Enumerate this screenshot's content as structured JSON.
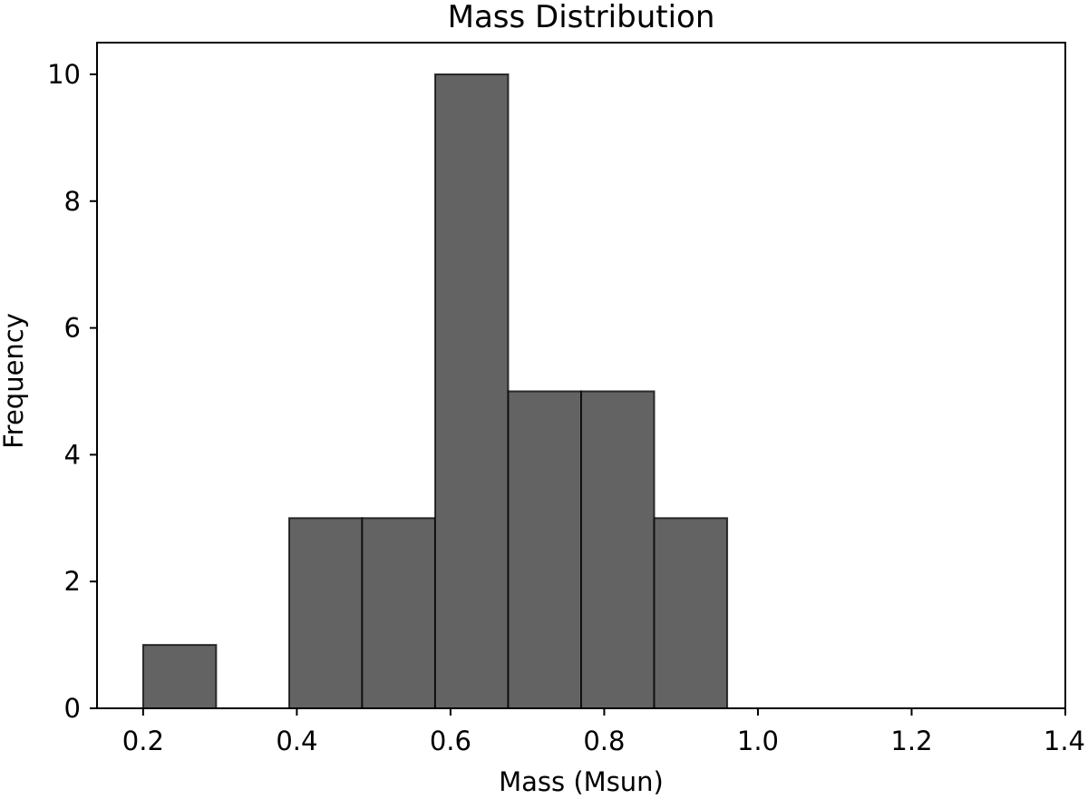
{
  "chart_data": {
    "type": "bar",
    "title": "Mass Distribution",
    "xlabel": "Mass (Msun)",
    "ylabel": "Frequency",
    "bins": [
      {
        "x0": 0.2,
        "x1": 0.295,
        "count": 1
      },
      {
        "x0": 0.295,
        "x1": 0.39,
        "count": 0
      },
      {
        "x0": 0.39,
        "x1": 0.485,
        "count": 3
      },
      {
        "x0": 0.485,
        "x1": 0.58,
        "count": 3
      },
      {
        "x0": 0.58,
        "x1": 0.675,
        "count": 10
      },
      {
        "x0": 0.675,
        "x1": 0.77,
        "count": 5
      },
      {
        "x0": 0.77,
        "x1": 0.865,
        "count": 5
      },
      {
        "x0": 0.865,
        "x1": 0.96,
        "count": 3
      }
    ],
    "xlim": [
      0.14,
      1.4
    ],
    "ylim": [
      0,
      10.5
    ],
    "xticks": [
      {
        "value": 0.2,
        "label": "0.2"
      },
      {
        "value": 0.4,
        "label": "0.4"
      },
      {
        "value": 0.6,
        "label": "0.6"
      },
      {
        "value": 0.8,
        "label": "0.8"
      },
      {
        "value": 1.0,
        "label": "1.0"
      },
      {
        "value": 1.2,
        "label": "1.2"
      },
      {
        "value": 1.4,
        "label": "1.4"
      }
    ],
    "yticks": [
      {
        "value": 0,
        "label": "0"
      },
      {
        "value": 2,
        "label": "2"
      },
      {
        "value": 4,
        "label": "4"
      },
      {
        "value": 6,
        "label": "6"
      },
      {
        "value": 8,
        "label": "8"
      },
      {
        "value": 10,
        "label": "10"
      }
    ],
    "grid": false,
    "bar_color": "#636363",
    "edge_color": "#000000"
  }
}
